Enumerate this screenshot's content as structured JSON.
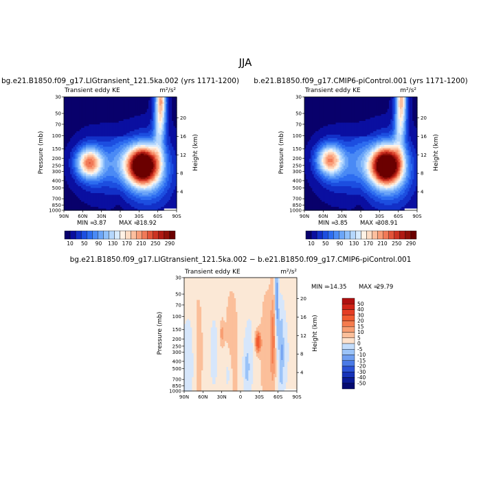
{
  "figure": {
    "season": "JJA"
  },
  "colors": {
    "ke_levels": [
      10,
      50,
      90,
      130,
      170,
      210,
      250,
      290
    ],
    "ke_ramp": [
      "#08006b",
      "#0a0fa0",
      "#1230c8",
      "#1c4ee0",
      "#2d6cf0",
      "#4a8af5",
      "#6ba5f8",
      "#8fc0fb",
      "#b5d7fd",
      "#d8ebfe",
      "#fff2e6",
      "#fedcc4",
      "#fdbf9e",
      "#f99d78",
      "#f17a58",
      "#e25439",
      "#cc3322",
      "#b01a12",
      "#901008",
      "#6b0000"
    ],
    "diff_levels": [
      "50",
      "40",
      "30",
      "20",
      "15",
      "10",
      "5",
      "0",
      "-5",
      "-10",
      "-15",
      "-20",
      "-30",
      "-40",
      "-50"
    ],
    "diff_colors": [
      "#b01010",
      "#d02418",
      "#e43d24",
      "#f05a30",
      "#f57c4e",
      "#f89e72",
      "#fbbf9a",
      "#fde2cc",
      "#c4ddfb",
      "#9bc3f8",
      "#6f9ef0",
      "#4a7ae6",
      "#2b52d6",
      "#1632b8",
      "#0a1a95",
      "#050a70"
    ]
  },
  "chart_data": [
    {
      "type": "heatmap",
      "panel": "left",
      "title": "bg.e21.B1850.f09_g17.LIGtransient_121.5ka.002 (yrs 1171-1200)",
      "subtitle_left": "Transient eddy KE",
      "units": "m²/s²",
      "xlabel": "",
      "ylabel": "Pressure (mb)",
      "ylabel_right": "Height (km)",
      "x_ticks": [
        "90N",
        "60N",
        "30N",
        "0",
        "30S",
        "60S",
        "90S"
      ],
      "y_ticks": [
        "30",
        "50",
        "70",
        "100",
        "150",
        "200",
        "250",
        "300",
        "400",
        "500",
        "700",
        "850",
        "1000"
      ],
      "height_ticks": [
        "20",
        "16",
        "12",
        "8",
        "4"
      ],
      "min_label": "MIN =",
      "min_value": "3.87",
      "max_label": "MAX =",
      "max_value": "318.92",
      "colorbar_labels": [
        "10",
        "50",
        "90",
        "130",
        "170",
        "210",
        "250",
        "290"
      ],
      "features": [
        {
          "lat": -35,
          "p": 250,
          "peak": 318.92
        },
        {
          "lat": 50,
          "p": 230,
          "peak": 182
        },
        {
          "lat": -65,
          "p": 40,
          "peak": 170
        }
      ]
    },
    {
      "type": "heatmap",
      "panel": "right",
      "title": "b.e21.B1850.f09_g17.CMIP6-piControl.001 (yrs 1171-1200)",
      "subtitle_left": "Transient eddy KE",
      "units": "m²/s²",
      "xlabel": "",
      "ylabel": "Pressure (mb)",
      "ylabel_right": "Height (km)",
      "x_ticks": [
        "90N",
        "60N",
        "30N",
        "0",
        "30S",
        "60S",
        "90S"
      ],
      "y_ticks": [
        "30",
        "50",
        "70",
        "100",
        "150",
        "200",
        "250",
        "300",
        "400",
        "500",
        "700",
        "850",
        "1000"
      ],
      "height_ticks": [
        "20",
        "16",
        "12",
        "8",
        "4"
      ],
      "min_label": "MIN =",
      "min_value": "3.85",
      "max_label": "MAX =",
      "max_value": "308.91",
      "colorbar_labels": [
        "10",
        "50",
        "90",
        "130",
        "170",
        "210",
        "250",
        "290"
      ],
      "features": [
        {
          "lat": -40,
          "p": 250,
          "peak": 308.91
        },
        {
          "lat": 50,
          "p": 210,
          "peak": 172
        },
        {
          "lat": -65,
          "p": 40,
          "peak": 160
        }
      ]
    },
    {
      "type": "heatmap",
      "panel": "difference",
      "title": "bg.e21.B1850.f09_g17.LIGtransient_121.5ka.002 − b.e21.B1850.f09_g17.CMIP6-piControl.001",
      "subtitle_left": "Transient eddy KE",
      "units": "m²/s²",
      "xlabel": "",
      "ylabel": "Pressure (mb)",
      "ylabel_right": "Height (km)",
      "x_ticks": [
        "90N",
        "60N",
        "30N",
        "0",
        "30S",
        "60S",
        "90S"
      ],
      "y_ticks": [
        "30",
        "50",
        "70",
        "100",
        "150",
        "200",
        "250",
        "300",
        "400",
        "500",
        "700",
        "850",
        "1000"
      ],
      "height_ticks": [
        "20",
        "16",
        "12",
        "8",
        "4"
      ],
      "min_label": "MIN =",
      "min_value": "-14.35",
      "max_label": "MAX =",
      "max_value": "29.79",
      "colorbar_labels": [
        "50",
        "40",
        "30",
        "20",
        "15",
        "10",
        "5",
        "0",
        "-5",
        "-10",
        "-15",
        "-20",
        "-30",
        "-40",
        "-50"
      ],
      "features": [
        {
          "lat": -28,
          "p": 220,
          "peak": 29.79
        },
        {
          "lat": 30,
          "p": 170,
          "peak": 12
        },
        {
          "lat": -58,
          "p": 60,
          "peak": -14.35
        }
      ]
    }
  ]
}
